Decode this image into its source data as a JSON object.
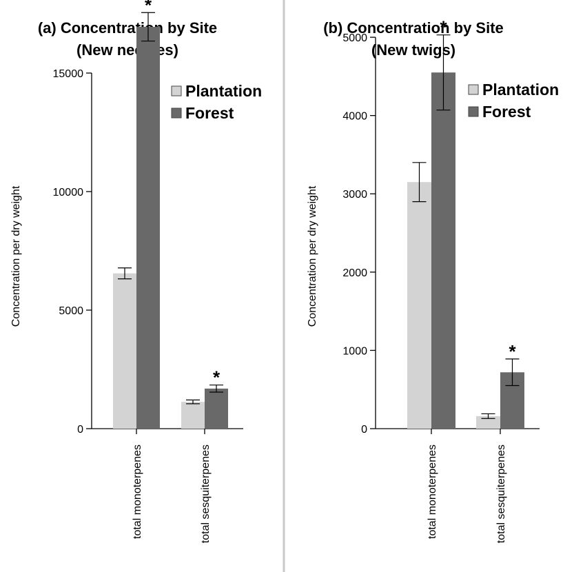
{
  "chart_data": [
    {
      "type": "bar",
      "title": [
        "(a) Concentration by Site",
        "(New needles)"
      ],
      "ylabel": "Concentration per dry weight",
      "xlabel": "",
      "categories": [
        "total monoterpenes",
        "total sesquiterpenes"
      ],
      "ylim": [
        0,
        17500
      ],
      "yticks": [
        0,
        5000,
        10000,
        15000
      ],
      "legend_position": "top-right",
      "series": [
        {
          "name": "Plantation",
          "color": "#d3d3d3",
          "values": [
            6550,
            1130
          ],
          "err": [
            230,
            80
          ]
        },
        {
          "name": "Forest",
          "color": "#696969",
          "values": [
            16950,
            1690
          ],
          "err": [
            600,
            150
          ]
        }
      ],
      "significance": [
        {
          "category": "total monoterpenes",
          "series": "Forest",
          "label": "*"
        },
        {
          "category": "total sesquiterpenes",
          "series": "Forest",
          "label": "*"
        }
      ]
    },
    {
      "type": "bar",
      "title": [
        "(b) Concentration by Site",
        "(New twigs)"
      ],
      "ylabel": "Concentration per dry weight",
      "xlabel": "",
      "categories": [
        "total monoterpenes",
        "total sesquiterpenes"
      ],
      "ylim": [
        0,
        5300
      ],
      "yticks": [
        0,
        1000,
        2000,
        3000,
        4000,
        5000
      ],
      "legend_position": "top-right",
      "series": [
        {
          "name": "Plantation",
          "color": "#d3d3d3",
          "values": [
            3150,
            160
          ],
          "err": [
            250,
            30
          ]
        },
        {
          "name": "Forest",
          "color": "#696969",
          "values": [
            4550,
            720
          ],
          "err": [
            480,
            170
          ]
        }
      ],
      "significance": [
        {
          "category": "total monoterpenes",
          "series": "Forest",
          "label": "*"
        },
        {
          "category": "total sesquiterpenes",
          "series": "Forest",
          "label": "*"
        }
      ]
    }
  ]
}
